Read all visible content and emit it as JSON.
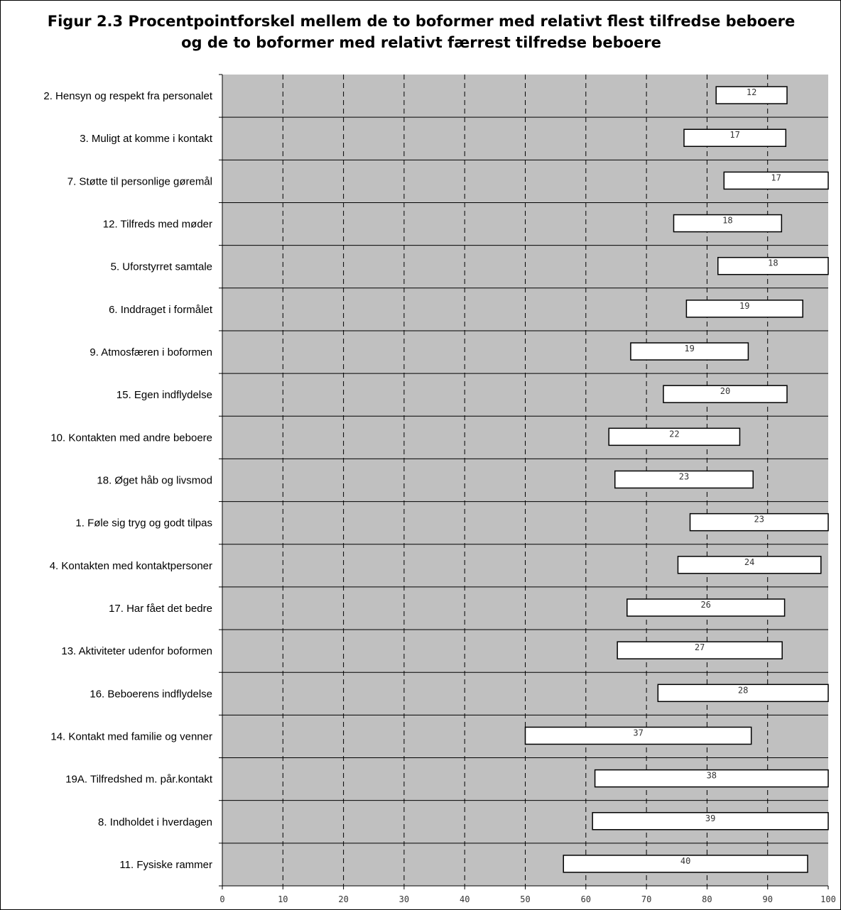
{
  "chart_data": {
    "type": "bar",
    "orientation": "horizontal",
    "title_lines": [
      "Figur 2.3 Procentpointforskel mellem de to boformer med relativt flest tilfredse beboere",
      "og de to boformer med relativt færrest tilfredse beboere"
    ],
    "xlim": [
      0,
      100
    ],
    "x_ticks": [
      0,
      10,
      20,
      30,
      40,
      50,
      60,
      70,
      80,
      90,
      100
    ],
    "grid": "dashed-vertical",
    "plot_background": "#c0c0c0",
    "bar_color": "#ffffff",
    "categories": [
      "2. Hensyn og respekt fra personalet",
      "3. Muligt at komme i kontakt",
      "7. Støtte til personlige gøremål",
      "12. Tilfreds med møder",
      "5. Uforstyrret samtale",
      "6. Inddraget i formålet",
      "9. Atmosfæren i boformen",
      "15. Egen indflydelse",
      "10. Kontakten med andre beboere",
      "18. Øget håb og livsmod",
      "1. Føle sig tryg og godt tilpas",
      "4. Kontakten med kontaktpersoner",
      "17. Har fået det bedre",
      "13. Aktiviteter udenfor boformen",
      "16. Beboerens indflydelse",
      "14. Kontakt med familie og venner",
      "19A. Tilfredshed m. pår.kontakt",
      "8. Indholdet i hverdagen",
      "11. Fysiske rammer"
    ],
    "ranges": [
      [
        81.5,
        93.2
      ],
      [
        76.2,
        93.0
      ],
      [
        82.8,
        100
      ],
      [
        74.5,
        92.3
      ],
      [
        81.8,
        100
      ],
      [
        76.6,
        95.8
      ],
      [
        67.4,
        86.8
      ],
      [
        72.8,
        93.2
      ],
      [
        63.8,
        85.4
      ],
      [
        64.8,
        87.6
      ],
      [
        77.2,
        100
      ],
      [
        75.2,
        98.8
      ],
      [
        66.8,
        92.8
      ],
      [
        65.2,
        92.4
      ],
      [
        71.9,
        100
      ],
      [
        50.0,
        87.3
      ],
      [
        61.5,
        100
      ],
      [
        61.1,
        100
      ],
      [
        56.3,
        96.6
      ]
    ],
    "values": [
      12,
      17,
      17,
      18,
      18,
      19,
      19,
      20,
      22,
      23,
      23,
      24,
      26,
      27,
      28,
      37,
      38,
      39,
      40
    ]
  }
}
